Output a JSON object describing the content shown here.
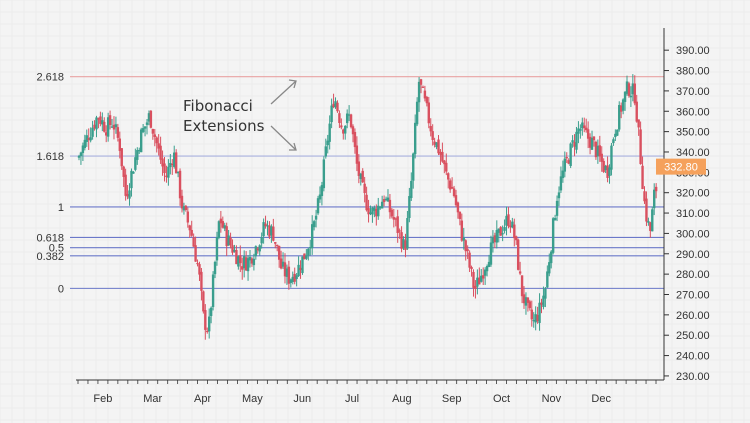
{
  "chart_data": {
    "type": "candlestick",
    "title": "",
    "xlabel": "",
    "ylabel": "",
    "ylim": [
      228,
      395
    ],
    "y_ticks": [
      390,
      380,
      370,
      360,
      350,
      340,
      330,
      320,
      310,
      300,
      290,
      280,
      270,
      260,
      250,
      240,
      230
    ],
    "y_tick_labels": [
      "390.00",
      "380.00",
      "370.00",
      "360.00",
      "350.00",
      "340.00",
      "330.00",
      "320.00",
      "310.00",
      "300.00",
      "290.00",
      "280.00",
      "270.00",
      "260.00",
      "250.00",
      "240.00",
      "230.00"
    ],
    "months": [
      {
        "label": "Feb",
        "pos": 2.5
      },
      {
        "label": "Mar",
        "pos": 7.5
      },
      {
        "label": "Apr",
        "pos": 12.5
      },
      {
        "label": "May",
        "pos": 17.5
      },
      {
        "label": "Jun",
        "pos": 22.5
      },
      {
        "label": "Jul",
        "pos": 27.5
      },
      {
        "label": "Aug",
        "pos": 32.5
      },
      {
        "label": "Sep",
        "pos": 37.5
      },
      {
        "label": "Oct",
        "pos": 42.5
      },
      {
        "label": "Nov",
        "pos": 47.5
      },
      {
        "label": "Dec",
        "pos": 52.5
      }
    ],
    "x_range": [
      0,
      58.2
    ],
    "anchors": [
      [
        0,
        337
      ],
      [
        1,
        348
      ],
      [
        2,
        358
      ],
      [
        2.8,
        352
      ],
      [
        3.5,
        355
      ],
      [
        4.2,
        343
      ],
      [
        4.8,
        318
      ],
      [
        5.5,
        332
      ],
      [
        6.3,
        348
      ],
      [
        7.2,
        358
      ],
      [
        8,
        342
      ],
      [
        8.8,
        327
      ],
      [
        9.6,
        340
      ],
      [
        10.5,
        312
      ],
      [
        11.3,
        302
      ],
      [
        12.1,
        282
      ],
      [
        12.6,
        258
      ],
      [
        13.1,
        252
      ],
      [
        13.6,
        278
      ],
      [
        14.2,
        308
      ],
      [
        14.9,
        298
      ],
      [
        15.6,
        292
      ],
      [
        16.4,
        285
      ],
      [
        17.2,
        287
      ],
      [
        18,
        295
      ],
      [
        18.8,
        304
      ],
      [
        19.6,
        300
      ],
      [
        20.4,
        283
      ],
      [
        21.2,
        278
      ],
      [
        22,
        282
      ],
      [
        22.8,
        290
      ],
      [
        23.6,
        302
      ],
      [
        24.3,
        318
      ],
      [
        25,
        345
      ],
      [
        25.7,
        368
      ],
      [
        26.5,
        352
      ],
      [
        27.3,
        358
      ],
      [
        28,
        333
      ],
      [
        28.7,
        318
      ],
      [
        29.4,
        310
      ],
      [
        30,
        312
      ],
      [
        30.7,
        318
      ],
      [
        31.4,
        310
      ],
      [
        32.1,
        302
      ],
      [
        32.8,
        292
      ],
      [
        33.5,
        328
      ],
      [
        34.2,
        375
      ],
      [
        34.9,
        362
      ],
      [
        35.6,
        348
      ],
      [
        36.3,
        340
      ],
      [
        37,
        328
      ],
      [
        37.7,
        320
      ],
      [
        38.4,
        302
      ],
      [
        39.1,
        288
      ],
      [
        39.8,
        272
      ],
      [
        40.5,
        280
      ],
      [
        41.2,
        290
      ],
      [
        41.9,
        296
      ],
      [
        42.6,
        303
      ],
      [
        43.3,
        308
      ],
      [
        43.9,
        296
      ],
      [
        44.5,
        272
      ],
      [
        45.1,
        262
      ],
      [
        45.7,
        256
      ],
      [
        46.3,
        262
      ],
      [
        46.9,
        273
      ],
      [
        47.5,
        296
      ],
      [
        48.1,
        320
      ],
      [
        48.8,
        332
      ],
      [
        49.6,
        343
      ],
      [
        50.3,
        352
      ],
      [
        51,
        348
      ],
      [
        51.7,
        344
      ],
      [
        52.4,
        336
      ],
      [
        53.1,
        330
      ],
      [
        53.8,
        350
      ],
      [
        54.5,
        362
      ],
      [
        55.2,
        372
      ],
      [
        55.9,
        368
      ],
      [
        56.4,
        340
      ],
      [
        56.9,
        312
      ],
      [
        57.4,
        300
      ],
      [
        57.9,
        322
      ]
    ],
    "fibonacci_levels": [
      {
        "label": "2.618",
        "value": 377,
        "color": "#e8a3a3"
      },
      {
        "label": "1.618",
        "value": 338,
        "color": "#a9b0de"
      },
      {
        "label": "1",
        "value": 313,
        "color": "#6b78c9"
      },
      {
        "label": "0.618",
        "value": 298,
        "color": "#6b78c9"
      },
      {
        "label": "0.5",
        "value": 293,
        "color": "#6b78c9"
      },
      {
        "label": "0.382",
        "value": 289,
        "color": "#6b78c9"
      },
      {
        "label": "0",
        "value": 273,
        "color": "#6b78c9"
      }
    ],
    "last_price": {
      "value": 332.8,
      "label": "332.80",
      "color": "#f5a15c"
    },
    "colors": {
      "up": "#3a9e8d",
      "down": "#d9505f",
      "grid": "#e6e6e6",
      "axis": "#333333"
    }
  },
  "annotation": {
    "line1": "Fibonacci",
    "line2": "Extensions"
  }
}
